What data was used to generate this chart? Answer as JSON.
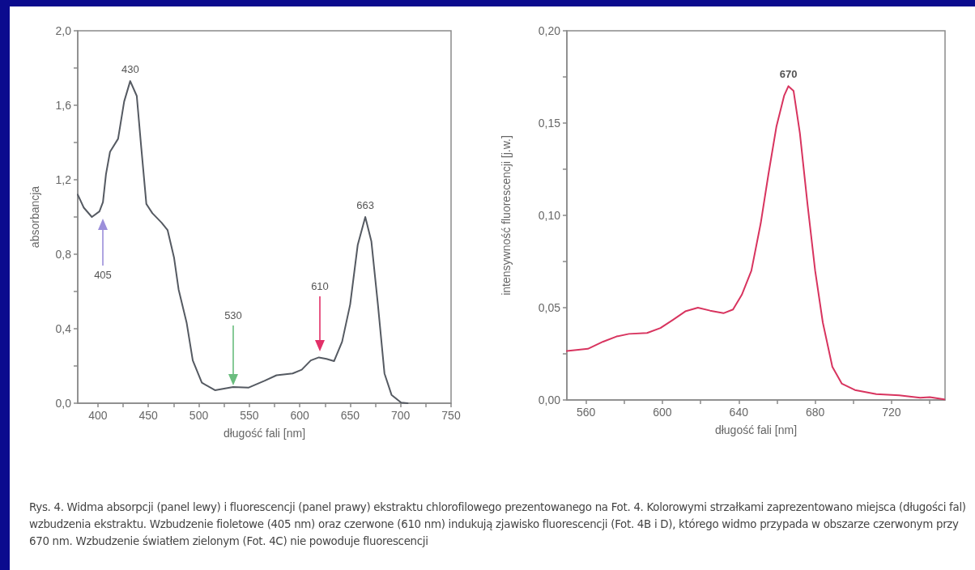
{
  "chart_data": [
    {
      "type": "line",
      "xlabel": "długość fali [nm]",
      "ylabel": "absorbancja",
      "color": "#555a62",
      "marker": "none",
      "line_style": "solid",
      "x": [
        380,
        386,
        394,
        401.5,
        405,
        408,
        412,
        420,
        426,
        432,
        438.5,
        443,
        448,
        454,
        463,
        469,
        475.5,
        480,
        488,
        494,
        503,
        516,
        534,
        549.5,
        565,
        577,
        593,
        602,
        611,
        619,
        626.5,
        634,
        642,
        650,
        657.5,
        665,
        671,
        677.5,
        684,
        691,
        700.5,
        707
      ],
      "values": [
        1.12,
        1.05,
        1.0,
        1.03,
        1.08,
        1.23,
        1.35,
        1.42,
        1.62,
        1.73,
        1.65,
        1.37,
        1.07,
        1.02,
        0.97,
        0.93,
        0.78,
        0.61,
        0.43,
        0.23,
        0.11,
        0.07,
        0.087,
        0.084,
        0.12,
        0.15,
        0.16,
        0.18,
        0.23,
        0.246,
        0.238,
        0.226,
        0.33,
        0.53,
        0.85,
        1.0,
        0.87,
        0.53,
        0.16,
        0.045,
        0.003,
        0
      ],
      "xlim": [
        380,
        750
      ],
      "xticks": [
        400,
        {
          "value": 425,
          "label": null
        },
        450,
        {
          "value": 475,
          "label": null
        },
        500,
        {
          "value": 525,
          "label": null
        },
        550,
        {
          "value": 575,
          "label": null
        },
        600,
        {
          "value": 625,
          "label": null
        },
        650,
        {
          "value": 675,
          "label": null
        },
        700,
        {
          "value": 725,
          "label": null
        },
        750
      ],
      "ylim": [
        0,
        2
      ],
      "yticks": [
        {
          "value": 0,
          "label": "0,0"
        },
        {
          "value": 0.2,
          "label": null
        },
        {
          "value": 0.4,
          "label": "0,4"
        },
        {
          "value": 0.6,
          "label": null
        },
        {
          "value": 0.8,
          "label": "0,8"
        },
        {
          "value": 1.0,
          "label": null
        },
        {
          "value": 1.2,
          "label": "1,2"
        },
        {
          "value": 1.4,
          "label": null
        },
        {
          "value": 1.6,
          "label": "1,6"
        },
        {
          "value": 1.8,
          "label": null
        },
        {
          "value": 2.0,
          "label": "2,0"
        }
      ],
      "annotations": [
        {
          "text": "430",
          "x": 432,
          "y": 1.73
        },
        {
          "text": "663",
          "x": 665,
          "y": 1.0
        },
        "405",
        "530",
        "610",
        "Rys. 4. Widma absorpcji (panel lewy) i fluorescencji (panel prawy) ekstraktu chlorofilowego prezentowanego na Fot. 4. Kolorowymi strzałkami zaprezentowano miejsca (długości fal) wzbudzenia ekstraktu. Wzbudzenie fioletowe (405 nm) oraz czerwone (610 nm) indukują zjawisko fluorescencji (Fot. 4B i D), którego widmo przypada w obszarze czerwonym przy 670 nm. Wzbudzenie światłem zielonym (Fot. 4C) nie powoduje fluorescencji"
      ]
    },
    {
      "type": "line",
      "xlabel": "długość fali [nm]",
      "ylabel": "intensywność fluorescencji [j.w.]",
      "color": "#d8345f",
      "marker": "none",
      "line_style": "solid",
      "x": [
        550,
        561,
        569,
        576,
        582.5,
        592,
        599,
        605.5,
        612,
        618.6,
        625,
        632,
        637,
        641.6,
        646.6,
        651.5,
        655.6,
        659.7,
        663.8,
        666,
        668.7,
        672,
        676,
        680,
        684,
        689,
        694,
        700.8,
        712,
        724,
        735,
        740,
        747.6
      ],
      "values": [
        0.0265,
        0.0277,
        0.0316,
        0.0344,
        0.0358,
        0.0363,
        0.039,
        0.0434,
        0.048,
        0.05,
        0.0484,
        0.047,
        0.049,
        0.057,
        0.07,
        0.0957,
        0.1227,
        0.148,
        0.165,
        0.17,
        0.1674,
        0.1446,
        0.106,
        0.07,
        0.042,
        0.018,
        0.0088,
        0.0054,
        0.0032,
        0.0025,
        0.0012,
        0.0015,
        0.0003
      ],
      "xlim": [
        550,
        748
      ],
      "xticks": [
        560,
        {
          "value": 580,
          "label": null
        },
        600,
        {
          "value": 620,
          "label": null
        },
        640,
        {
          "value": 660,
          "label": null
        },
        680,
        {
          "value": 700,
          "label": null
        },
        720,
        {
          "value": 740,
          "label": null
        }
      ],
      "ylim": [
        0,
        0.2
      ],
      "yticks": [
        {
          "value": 0,
          "label": "0,00"
        },
        {
          "value": 0.025,
          "label": null
        },
        {
          "value": 0.05,
          "label": "0,05"
        },
        {
          "value": 0.075,
          "label": null
        },
        {
          "value": 0.1,
          "label": "0,10"
        },
        {
          "value": 0.125,
          "label": null
        },
        {
          "value": 0.15,
          "label": "0,15"
        },
        {
          "value": 0.175,
          "label": null
        },
        {
          "value": 0.2,
          "label": "0,20"
        }
      ],
      "annotations": [
        {
          "text": "670",
          "x": 666,
          "y": 0.17
        }
      ]
    }
  ]
}
